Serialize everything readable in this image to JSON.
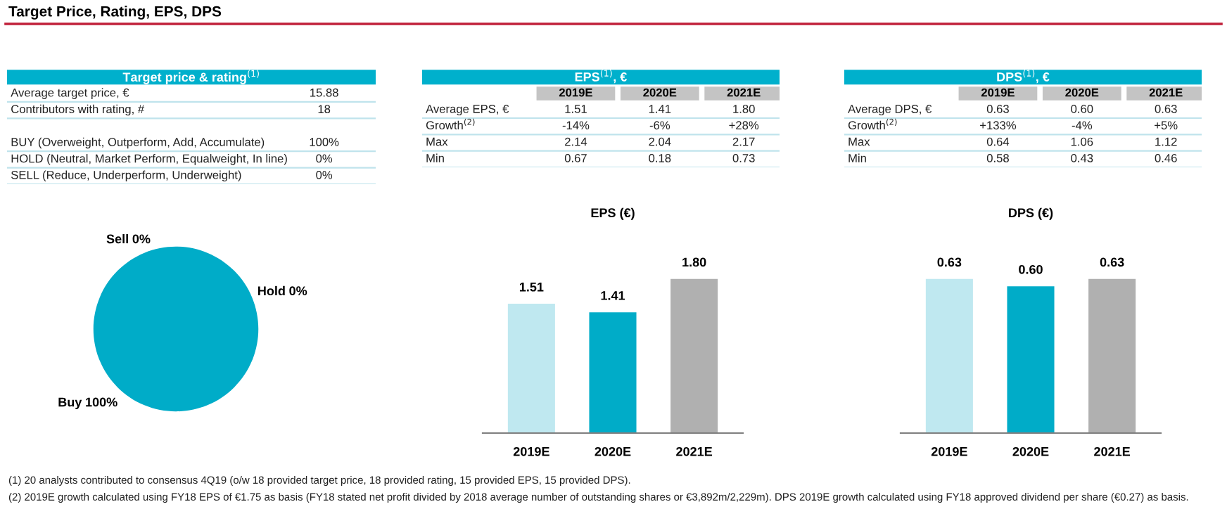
{
  "chart_data": [
    {
      "type": "other",
      "title": "Target Price, Rating, EPS, DPS",
      "annotations": [
        "(1) 20 analysts contributed to consensus 4Q19 (o/w 18 provided target price, 18 provided rating, 15 provided EPS, 15 provided DPS).",
        "(2) 2019E growth calculated using FY18 EPS of €1.75 as basis (FY18 stated net profit divided by 2018 average number of outstanding shares or €3,892m/2,229m). DPS 2019E growth calculated using FY18 approved dividend per share (€0.27) as basis."
      ]
    },
    {
      "type": "other",
      "title": "Target price & rating$^{(1)}$",
      "y_categories": [
        "Average target price, €",
        "Contributors with rating, #",
        null,
        "BUY (Overweight, Outperform, Add, Accumulate)",
        "HOLD (Neutral, Market Perform, Equalweight, In line)",
        "SELL (Reduce, Underperform, Underweight)"
      ],
      "cell_labels": [
        [
          "15.88"
        ],
        [
          "18"
        ],
        [
          null
        ],
        [
          "100%"
        ],
        [
          "0%"
        ],
        [
          "0%"
        ]
      ]
    },
    {
      "type": "other",
      "title": "EPS$^{(1)}$, €",
      "categories": [
        "2019E",
        "2020E",
        "2021E"
      ],
      "y_categories": [
        "Average EPS, €",
        "Growth$^{(2)}$",
        "Max",
        "Min"
      ],
      "cell_labels": [
        [
          "1.51",
          "1.41",
          "1.80"
        ],
        [
          "-14%",
          "-6%",
          "+28%"
        ],
        [
          "2.14",
          "2.04",
          "2.17"
        ],
        [
          "0.67",
          "0.18",
          "0.73"
        ]
      ]
    },
    {
      "type": "other",
      "title": "DPS$^{(1)}$, €",
      "categories": [
        "2019E",
        "2020E",
        "2021E"
      ],
      "y_categories": [
        "Average DPS, €",
        "Growth$^{(2)}$",
        "Max",
        "Min"
      ],
      "cell_labels": [
        [
          "0.63",
          "0.60",
          "0.63"
        ],
        [
          "+133%",
          "-4%",
          "+5%"
        ],
        [
          "0.64",
          "1.06",
          "1.12"
        ],
        [
          "0.58",
          "0.43",
          "0.46"
        ]
      ]
    },
    {
      "type": "pie",
      "categories": [
        "Sell",
        "Hold",
        "Buy"
      ],
      "values": [
        0,
        0,
        100
      ],
      "value_labels": [
        "0%",
        "0%",
        "100%"
      ],
      "colors": [
        "#b0b0b0",
        "#bfe8f0",
        "#00acc8"
      ]
    },
    {
      "type": "bar",
      "title": "EPS (€)",
      "categories": [
        "2019E",
        "2020E",
        "2021E"
      ],
      "values": [
        1.51,
        1.41,
        1.8
      ],
      "value_labels": [
        "1.51",
        "1.41",
        "1.80"
      ],
      "colors": [
        "#bfe8f0",
        "#00acc8",
        "#b0b0b0"
      ]
    },
    {
      "type": "bar",
      "title": "DPS (€)",
      "categories": [
        "2019E",
        "2020E",
        "2021E"
      ],
      "values": [
        0.63,
        0.6,
        0.63
      ],
      "value_labels": [
        "0.63",
        "0.60",
        "0.63"
      ],
      "colors": [
        "#bfe8f0",
        "#00acc8",
        "#b0b0b0"
      ]
    }
  ]
}
